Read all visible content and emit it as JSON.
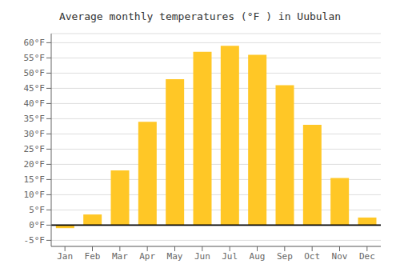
{
  "chart_data": {
    "type": "bar",
    "title": "Average monthly temperatures (°F ) in Uubulan",
    "categories": [
      "Jan",
      "Feb",
      "Mar",
      "Apr",
      "May",
      "Jun",
      "Jul",
      "Aug",
      "Sep",
      "Oct",
      "Nov",
      "Dec"
    ],
    "values": [
      -1.0,
      3.5,
      18.0,
      34.0,
      48.0,
      57.0,
      59.0,
      56.0,
      46.0,
      33.0,
      15.5,
      2.5
    ],
    "color": "#FFC726",
    "ylim": [
      -7,
      63
    ],
    "yticks": [
      {
        "value": -5,
        "label": "-5°F"
      },
      {
        "value": 0,
        "label": "0°F"
      },
      {
        "value": 5,
        "label": "5°F"
      },
      {
        "value": 10,
        "label": "10°F"
      },
      {
        "value": 15,
        "label": "15°F"
      },
      {
        "value": 20,
        "label": "20°F"
      },
      {
        "value": 25,
        "label": "25°F"
      },
      {
        "value": 30,
        "label": "30°F"
      },
      {
        "value": 35,
        "label": "35°F"
      },
      {
        "value": 40,
        "label": "40°F"
      },
      {
        "value": 45,
        "label": "45°F"
      },
      {
        "value": 50,
        "label": "50°F"
      },
      {
        "value": 55,
        "label": "55°F"
      },
      {
        "value": 60,
        "label": "60°F"
      }
    ],
    "grid": true
  }
}
